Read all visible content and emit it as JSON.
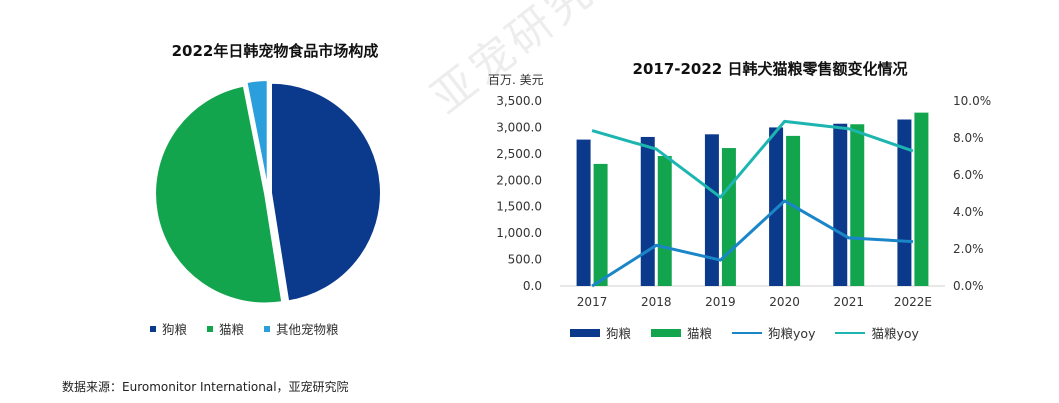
{
  "watermark": "亚宠研究院",
  "source_note": "数据来源：Euromonitor International，亚宠研究院",
  "chart_data": [
    {
      "type": "pie",
      "title": "2022年日韩宠物食品市场构成",
      "slices": [
        {
          "label": "狗粮",
          "value": 47.5,
          "color": "#0b3a8c"
        },
        {
          "label": "猫粮",
          "value": 49.4,
          "color": "#13a54e"
        },
        {
          "label": "其他宠物粮",
          "value": 3.1,
          "color": "#2a9fdc"
        }
      ],
      "legend_position": "bottom"
    },
    {
      "type": "bar",
      "title": "2017-2022  日韩犬猫粮零售额变化情况",
      "ylabel": "百万. 美元",
      "categories": [
        "2017",
        "2018",
        "2019",
        "2020",
        "2021",
        "2022E"
      ],
      "ylim": [
        0,
        3500
      ],
      "yticks": [
        "0.0",
        "500.0",
        "1,000.0",
        "1,500.0",
        "2,000.0",
        "2,500.0",
        "3,000.0",
        "3,500.0"
      ],
      "y2lim": [
        0,
        10
      ],
      "y2ticks": [
        "0.0%",
        "2.0%",
        "4.0%",
        "6.0%",
        "8.0%",
        "10.0%"
      ],
      "series": [
        {
          "name": "狗粮",
          "type": "bar",
          "axis": "left",
          "color": "#0b3a8c",
          "values": [
            2770,
            2820,
            2870,
            3000,
            3070,
            3150
          ]
        },
        {
          "name": "猫粮",
          "type": "bar",
          "axis": "left",
          "color": "#13a54e",
          "values": [
            2310,
            2460,
            2610,
            2840,
            3060,
            3280
          ]
        },
        {
          "name": "狗粮yoy",
          "type": "line",
          "axis": "right",
          "color": "#1a86c8",
          "values": [
            0.0,
            2.2,
            1.4,
            4.6,
            2.6,
            2.4
          ]
        },
        {
          "name": "猫粮yoy",
          "type": "line",
          "axis": "right",
          "color": "#1cb5b0",
          "values": [
            8.4,
            7.4,
            4.8,
            8.9,
            8.5,
            7.3
          ]
        }
      ],
      "legend_position": "bottom",
      "grid": false
    }
  ]
}
